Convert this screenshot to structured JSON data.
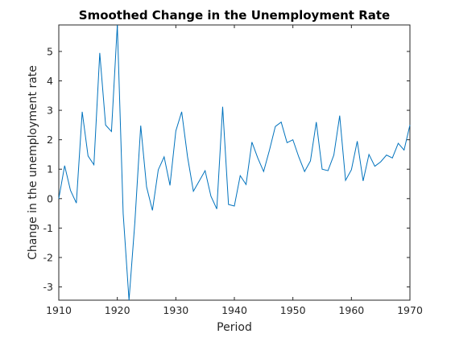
{
  "chart_data": {
    "type": "line",
    "title": "Smoothed Change in the Unemployment Rate",
    "xlabel": "Period",
    "ylabel": "Change in the unemployment rate",
    "xlim": [
      1910,
      1970
    ],
    "ylim": [
      -3.45,
      5.9
    ],
    "xticks": [
      1910,
      1920,
      1930,
      1940,
      1950,
      1960,
      1970
    ],
    "yticks": [
      -3,
      -2,
      -1,
      0,
      1,
      2,
      3,
      4,
      5
    ],
    "grid": false,
    "series_color": "#0072BD",
    "x": [
      1910,
      1911,
      1912,
      1913,
      1914,
      1915,
      1916,
      1917,
      1918,
      1919,
      1920,
      1921,
      1922,
      1923,
      1924,
      1925,
      1926,
      1927,
      1928,
      1929,
      1930,
      1931,
      1932,
      1933,
      1934,
      1935,
      1936,
      1937,
      1938,
      1939,
      1940,
      1941,
      1942,
      1943,
      1944,
      1945,
      1946,
      1947,
      1948,
      1949,
      1950,
      1951,
      1952,
      1953,
      1954,
      1955,
      1956,
      1957,
      1958,
      1959,
      1960,
      1961,
      1962,
      1963,
      1964,
      1965,
      1966,
      1967,
      1968,
      1969,
      1970
    ],
    "y": [
      0.0,
      1.12,
      0.28,
      -0.15,
      2.95,
      1.45,
      1.15,
      4.95,
      2.5,
      2.28,
      5.9,
      -0.5,
      -3.45,
      -0.8,
      2.48,
      0.4,
      -0.4,
      0.98,
      1.42,
      0.45,
      2.3,
      2.95,
      1.42,
      0.25,
      0.6,
      0.95,
      0.08,
      -0.35,
      3.12,
      -0.2,
      -0.25,
      0.78,
      0.48,
      1.92,
      1.38,
      0.92,
      1.65,
      2.45,
      2.6,
      1.9,
      2.0,
      1.42,
      0.92,
      1.28,
      2.6,
      1.0,
      0.95,
      1.48,
      2.82,
      0.62,
      0.98,
      1.95,
      0.6,
      1.5,
      1.1,
      1.25,
      1.48,
      1.38,
      1.88,
      1.65,
      2.5
    ]
  }
}
